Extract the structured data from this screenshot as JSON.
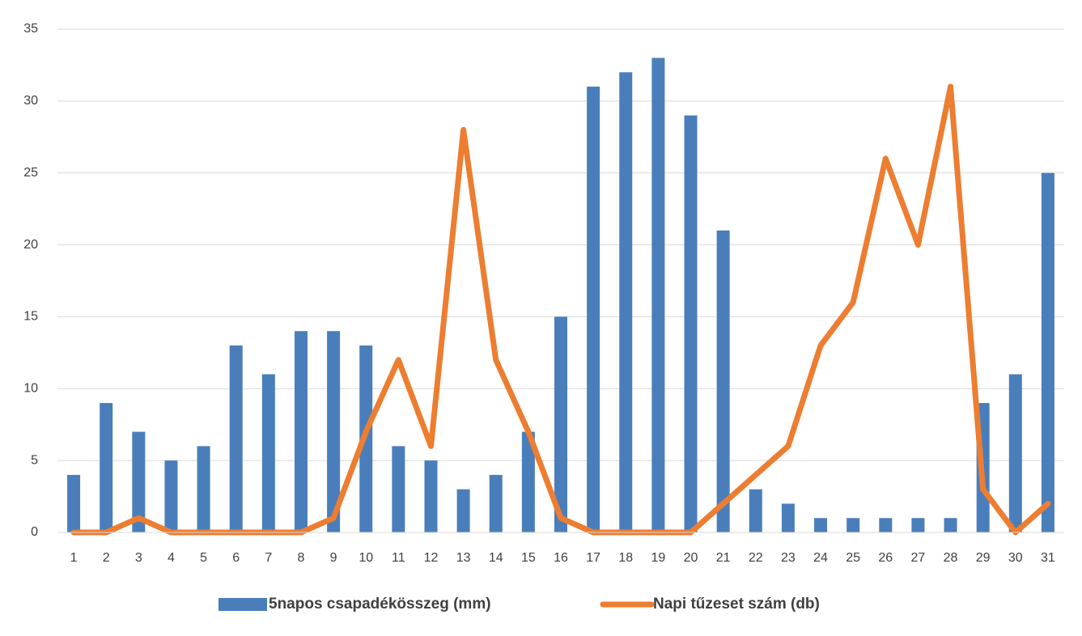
{
  "chart_data": {
    "type": "bar",
    "categories": [
      "1",
      "2",
      "3",
      "4",
      "5",
      "6",
      "7",
      "8",
      "9",
      "10",
      "11",
      "12",
      "13",
      "14",
      "15",
      "16",
      "17",
      "18",
      "19",
      "20",
      "21",
      "22",
      "23",
      "24",
      "25",
      "26",
      "27",
      "28",
      "29",
      "30",
      "31"
    ],
    "series": [
      {
        "name": "5napos csapadékösszeg (mm)",
        "type": "bar",
        "color": "#4a7ebb",
        "values": [
          4,
          9,
          7,
          5,
          6,
          13,
          11,
          14,
          14,
          13,
          6,
          5,
          3,
          4,
          7,
          15,
          31,
          32,
          33,
          29,
          21,
          3,
          2,
          1,
          1,
          1,
          1,
          1,
          9,
          11,
          25
        ]
      },
      {
        "name": "Napi tűzeset szám (db)",
        "type": "line",
        "color": "#ed7d31",
        "values": [
          0,
          0,
          1,
          0,
          0,
          0,
          0,
          0,
          1,
          7,
          12,
          6,
          28,
          12,
          7,
          1,
          0,
          0,
          0,
          0,
          2,
          4,
          6,
          13,
          16,
          26,
          20,
          31,
          3,
          0,
          2
        ]
      }
    ],
    "ylim": [
      0,
      35
    ],
    "yticks": [
      0,
      5,
      10,
      15,
      20,
      25,
      30,
      35
    ],
    "grid": true,
    "legend": "bottom"
  }
}
